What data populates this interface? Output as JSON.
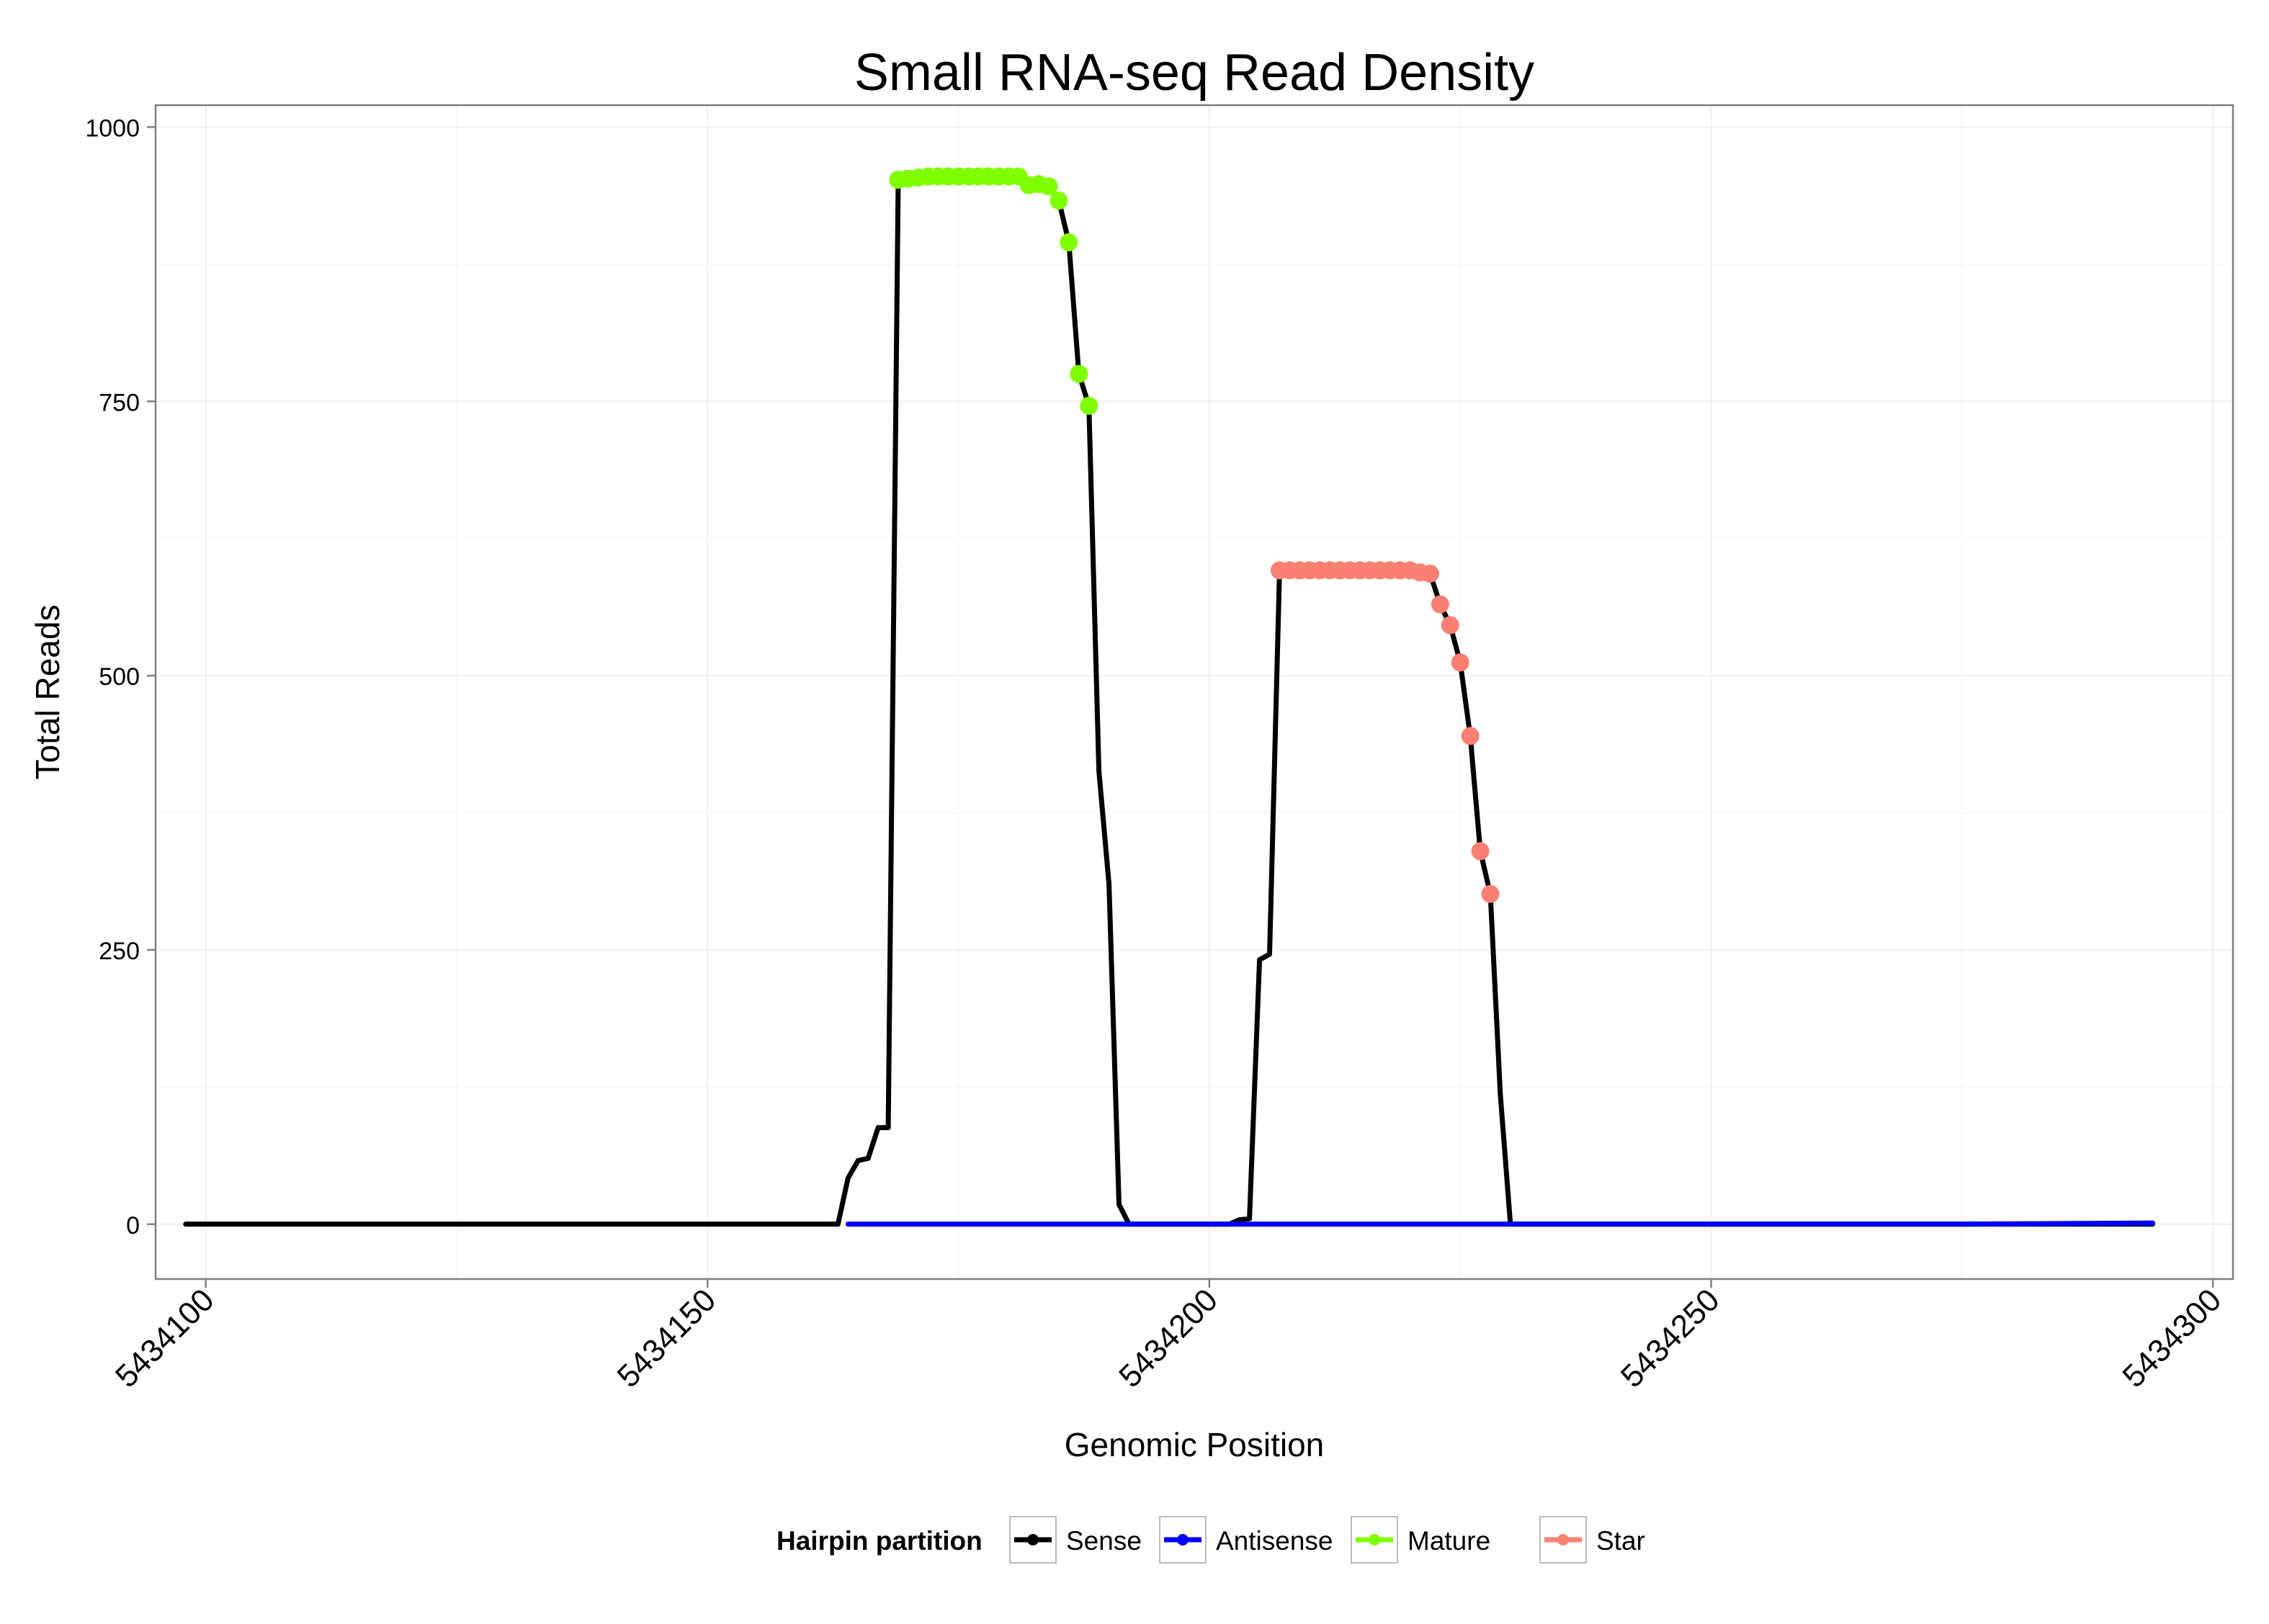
{
  "chart_data": {
    "type": "line",
    "title": "Small RNA-seq Read Density",
    "xlabel": "Genomic Position",
    "ylabel": "Total Reads",
    "xlim": [
      5434095,
      5434302
    ],
    "ylim": [
      -50,
      1020
    ],
    "x_ticks": [
      5434100,
      5434150,
      5434200,
      5434250,
      5434300
    ],
    "x_tick_labels": [
      "5434100",
      "5434150",
      "5434200",
      "5434250",
      "5434300"
    ],
    "y_ticks": [
      0,
      250,
      500,
      750,
      1000
    ],
    "y_tick_labels": [
      "0",
      "250",
      "500",
      "750",
      "1000"
    ],
    "grid": true,
    "legend": {
      "title": "Hairpin partition",
      "placement": "bottom",
      "entries": [
        "Sense",
        "Antisense",
        "Mature",
        "Star"
      ]
    },
    "series": [
      {
        "name": "Sense",
        "color": "#000000",
        "marker": false,
        "points": [
          [
            5434098,
            0
          ],
          [
            5434163,
            0
          ],
          [
            5434164,
            42
          ],
          [
            5434165,
            58
          ],
          [
            5434166,
            60
          ],
          [
            5434167,
            88
          ],
          [
            5434168,
            88
          ],
          [
            5434169,
            952
          ],
          [
            5434170,
            953
          ],
          [
            5434171,
            954
          ],
          [
            5434172,
            955
          ],
          [
            5434173,
            955
          ],
          [
            5434174,
            955
          ],
          [
            5434175,
            955
          ],
          [
            5434176,
            955
          ],
          [
            5434177,
            955
          ],
          [
            5434178,
            955
          ],
          [
            5434179,
            955
          ],
          [
            5434180,
            955
          ],
          [
            5434181,
            955
          ],
          [
            5434182,
            947
          ],
          [
            5434183,
            948
          ],
          [
            5434184,
            946
          ],
          [
            5434185,
            933
          ],
          [
            5434186,
            895
          ],
          [
            5434187,
            775
          ],
          [
            5434188,
            746
          ],
          [
            5434189,
            413
          ],
          [
            5434190,
            310
          ],
          [
            5434191,
            18
          ],
          [
            5434192,
            0
          ],
          [
            5434202,
            0
          ],
          [
            5434203,
            4
          ],
          [
            5434204,
            5
          ],
          [
            5434205,
            241
          ],
          [
            5434206,
            246
          ],
          [
            5434207,
            596
          ],
          [
            5434208,
            596
          ],
          [
            5434209,
            596
          ],
          [
            5434210,
            596
          ],
          [
            5434211,
            596
          ],
          [
            5434212,
            596
          ],
          [
            5434213,
            596
          ],
          [
            5434214,
            596
          ],
          [
            5434215,
            596
          ],
          [
            5434216,
            596
          ],
          [
            5434217,
            596
          ],
          [
            5434218,
            596
          ],
          [
            5434219,
            596
          ],
          [
            5434220,
            596
          ],
          [
            5434221,
            594
          ],
          [
            5434222,
            593
          ],
          [
            5434223,
            565
          ],
          [
            5434224,
            546
          ],
          [
            5434225,
            512
          ],
          [
            5434226,
            445
          ],
          [
            5434227,
            340
          ],
          [
            5434228,
            301
          ],
          [
            5434229,
            118
          ],
          [
            5434230,
            0
          ],
          [
            5434294,
            0
          ]
        ]
      },
      {
        "name": "Antisense",
        "color": "#0000ff",
        "marker": false,
        "points": [
          [
            5434164,
            0
          ],
          [
            5434192,
            0
          ],
          [
            5434202,
            0
          ],
          [
            5434230,
            0
          ],
          [
            5434275,
            0
          ],
          [
            5434294,
            1
          ]
        ]
      },
      {
        "name": "Mature",
        "color": "#7fff00",
        "marker": true,
        "points": [
          [
            5434169,
            952
          ],
          [
            5434170,
            953
          ],
          [
            5434171,
            954
          ],
          [
            5434172,
            955
          ],
          [
            5434173,
            955
          ],
          [
            5434174,
            955
          ],
          [
            5434175,
            955
          ],
          [
            5434176,
            955
          ],
          [
            5434177,
            955
          ],
          [
            5434178,
            955
          ],
          [
            5434179,
            955
          ],
          [
            5434180,
            955
          ],
          [
            5434181,
            955
          ],
          [
            5434182,
            947
          ],
          [
            5434183,
            948
          ],
          [
            5434184,
            946
          ],
          [
            5434185,
            933
          ],
          [
            5434186,
            895
          ],
          [
            5434187,
            775
          ],
          [
            5434188,
            746
          ]
        ]
      },
      {
        "name": "Star",
        "color": "#fa8072",
        "marker": true,
        "points": [
          [
            5434207,
            596
          ],
          [
            5434208,
            596
          ],
          [
            5434209,
            596
          ],
          [
            5434210,
            596
          ],
          [
            5434211,
            596
          ],
          [
            5434212,
            596
          ],
          [
            5434213,
            596
          ],
          [
            5434214,
            596
          ],
          [
            5434215,
            596
          ],
          [
            5434216,
            596
          ],
          [
            5434217,
            596
          ],
          [
            5434218,
            596
          ],
          [
            5434219,
            596
          ],
          [
            5434220,
            596
          ],
          [
            5434221,
            594
          ],
          [
            5434222,
            593
          ],
          [
            5434223,
            565
          ],
          [
            5434224,
            546
          ],
          [
            5434225,
            512
          ],
          [
            5434226,
            445
          ],
          [
            5434227,
            340
          ],
          [
            5434228,
            301
          ]
        ]
      }
    ]
  }
}
